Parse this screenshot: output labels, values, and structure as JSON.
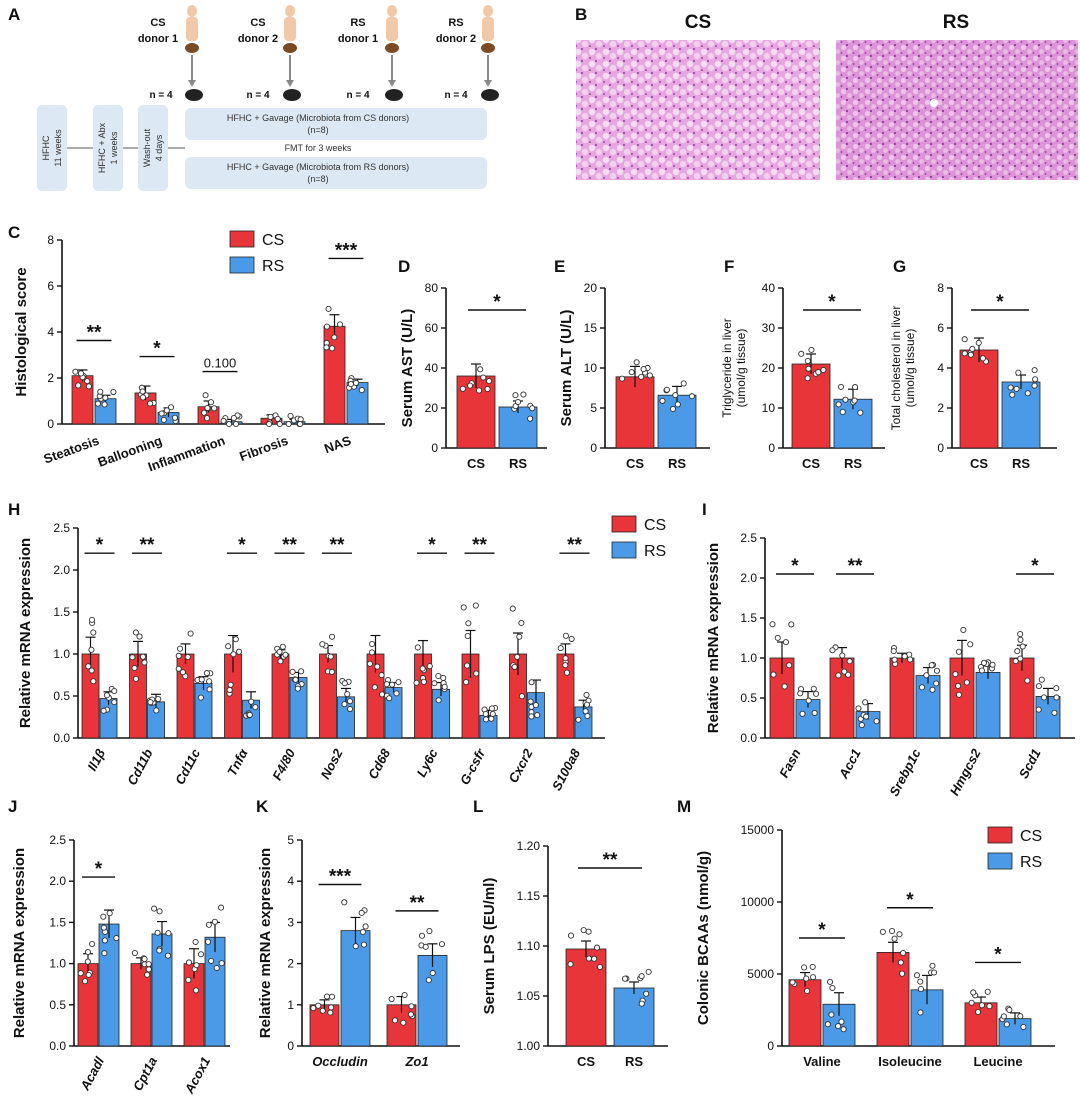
{
  "colors": {
    "cs": "#e8353a",
    "rs": "#4a9ae8",
    "box": "#dce8f3",
    "he": "#d77bd0"
  },
  "panels": {
    "A": "A",
    "B": "B",
    "C": "C",
    "D": "D",
    "E": "E",
    "F": "F",
    "G": "G",
    "H": "H",
    "I": "I",
    "J": "J",
    "K": "K",
    "L": "L",
    "M": "M"
  },
  "panel_a": {
    "donors": [
      {
        "line1": "CS",
        "line2": "donor 1",
        "n": "n = 4"
      },
      {
        "line1": "CS",
        "line2": "donor 2",
        "n": "n = 4"
      },
      {
        "line1": "RS",
        "line2": "donor 1",
        "n": "n = 4"
      },
      {
        "line1": "RS",
        "line2": "donor 2",
        "n": "n = 4"
      }
    ],
    "step1": [
      "HFHC",
      "11 weeks"
    ],
    "step2": [
      "HFHC + Abx",
      "1 weeks"
    ],
    "step3": [
      "Wash-out",
      "4 days"
    ],
    "gavage_cs": [
      "HFHC + Gavage (Microbiota from CS donors)",
      "(n=8)"
    ],
    "fmt": "FMT for 3 weeks",
    "gavage_rs": [
      "HFHC + Gavage (Microbiota from RS donors)",
      "(n=8)"
    ]
  },
  "panel_b": {
    "left": "CS",
    "right": "RS"
  },
  "chart_data": [
    {
      "id": "C",
      "type": "bar",
      "ylabel": "Histological score",
      "ylim": [
        0,
        8
      ],
      "yticks": [
        0,
        2,
        4,
        6,
        8
      ],
      "categories": [
        "Steatosis",
        "Ballooning",
        "Inflammation",
        "Fibrosis",
        "NAS"
      ],
      "legend": [
        "CS",
        "RS"
      ],
      "series": [
        {
          "name": "CS",
          "values": [
            2.1,
            1.35,
            0.75,
            0.25,
            4.25
          ],
          "errors": [
            0.25,
            0.3,
            0.25,
            0.15,
            0.5
          ]
        },
        {
          "name": "RS",
          "values": [
            1.1,
            0.5,
            0.1,
            0.1,
            1.8
          ],
          "errors": [
            0.15,
            0.2,
            0.1,
            0.1,
            0.15
          ]
        }
      ],
      "significance": [
        "**",
        "*",
        "0.100",
        "",
        "***"
      ]
    },
    {
      "id": "D",
      "type": "bar",
      "ylabel": "Serum AST (U/L)",
      "ylim": [
        0,
        80
      ],
      "yticks": [
        0,
        20,
        40,
        60,
        80
      ],
      "categories": [
        "CS",
        "RS"
      ],
      "values": [
        36,
        20.5
      ],
      "errors": [
        6,
        3
      ],
      "significance": "*"
    },
    {
      "id": "E",
      "type": "bar",
      "ylabel": "Serum ALT (U/L)",
      "ylim": [
        0,
        20
      ],
      "yticks": [
        0,
        5,
        10,
        15,
        20
      ],
      "categories": [
        "CS",
        "RS"
      ],
      "values": [
        8.9,
        6.6
      ],
      "errors": [
        1.3,
        1.1
      ],
      "significance": ""
    },
    {
      "id": "F",
      "type": "bar",
      "ylabel": [
        "Triglyceride in liver",
        "(umol/g tissue)"
      ],
      "ylim": [
        0,
        40
      ],
      "yticks": [
        0,
        10,
        20,
        30,
        40
      ],
      "categories": [
        "CS",
        "RS"
      ],
      "values": [
        21,
        12.2
      ],
      "errors": [
        2.5,
        2.5
      ],
      "significance": "*"
    },
    {
      "id": "G",
      "type": "bar",
      "ylabel": [
        "Total cholesterol in liver",
        "(umol/g tissue)"
      ],
      "ylim": [
        0,
        8
      ],
      "yticks": [
        0,
        2,
        4,
        6,
        8
      ],
      "categories": [
        "CS",
        "RS"
      ],
      "values": [
        4.9,
        3.3
      ],
      "errors": [
        0.6,
        0.35
      ],
      "significance": "*"
    },
    {
      "id": "H",
      "type": "bar",
      "ylabel": "Relative mRNA expression",
      "ylim": [
        0,
        2.5
      ],
      "yticks": [
        "0.0",
        "0.5",
        "1.0",
        "1.5",
        "2.0",
        "2.5"
      ],
      "categories": [
        "Il1β",
        "Cd11b",
        "Cd11c",
        "Tnfα",
        "F4/80",
        "Nos2",
        "Cd68",
        "Ly6c",
        "G-csfr",
        "Cxcr2",
        "S100a8"
      ],
      "legend": [
        "CS",
        "RS"
      ],
      "series": [
        {
          "name": "CS",
          "values": [
            1.0,
            1.0,
            1.0,
            1.0,
            1.0,
            1.0,
            1.0,
            1.0,
            1.0,
            1.0,
            1.0
          ],
          "errors": [
            0.2,
            0.15,
            0.12,
            0.22,
            0.05,
            0.1,
            0.22,
            0.16,
            0.28,
            0.25,
            0.12
          ]
        },
        {
          "name": "RS",
          "values": [
            0.47,
            0.43,
            0.65,
            0.45,
            0.72,
            0.49,
            0.6,
            0.58,
            0.27,
            0.54,
            0.37
          ],
          "errors": [
            0.08,
            0.09,
            0.08,
            0.1,
            0.06,
            0.1,
            0.06,
            0.08,
            0.06,
            0.15,
            0.08
          ]
        }
      ],
      "significance": [
        "*",
        "**",
        "",
        "*",
        "**",
        "**",
        "",
        "*",
        "**",
        "",
        "**"
      ]
    },
    {
      "id": "I",
      "type": "bar",
      "ylabel": "Relative mRNA expression",
      "ylim": [
        0,
        2.5
      ],
      "yticks": [
        "0.0",
        "0.5",
        "1.0",
        "1.5",
        "2.0",
        "2.5"
      ],
      "categories": [
        "Fasn",
        "Acc1",
        "Srebp1c",
        "Hmgcs2",
        "Scd1"
      ],
      "series": [
        {
          "name": "CS",
          "values": [
            1.0,
            1.0,
            1.0,
            1.0,
            1.0
          ],
          "errors": [
            0.2,
            0.13,
            0.06,
            0.22,
            0.16
          ]
        },
        {
          "name": "RS",
          "values": [
            0.48,
            0.33,
            0.78,
            0.82,
            0.52
          ],
          "errors": [
            0.1,
            0.1,
            0.1,
            0.08,
            0.1
          ]
        }
      ],
      "significance": [
        "*",
        "**",
        "",
        "",
        "*"
      ]
    },
    {
      "id": "J",
      "type": "bar",
      "ylabel": "Relative mRNA expression",
      "ylim": [
        0,
        2.5
      ],
      "yticks": [
        "0.0",
        "0.5",
        "1.0",
        "1.5",
        "2.0",
        "2.5"
      ],
      "categories": [
        "Acadl",
        "Cpt1a",
        "Acox1"
      ],
      "series": [
        {
          "name": "CS",
          "values": [
            1.0,
            1.0,
            1.0
          ],
          "errors": [
            0.12,
            0.07,
            0.18
          ]
        },
        {
          "name": "RS",
          "values": [
            1.48,
            1.36,
            1.32
          ],
          "errors": [
            0.17,
            0.15,
            0.18
          ]
        }
      ],
      "significance": [
        "*",
        "",
        ""
      ]
    },
    {
      "id": "K",
      "type": "bar",
      "ylabel": "Relative mRNA expression",
      "ylim": [
        0,
        5
      ],
      "yticks": [
        0,
        1,
        2,
        3,
        4,
        5
      ],
      "categories": [
        "Occludin",
        "Zo1"
      ],
      "series": [
        {
          "name": "CS",
          "values": [
            1.0,
            1.0
          ],
          "errors": [
            0.12,
            0.2
          ]
        },
        {
          "name": "RS",
          "values": [
            2.8,
            2.2
          ],
          "errors": [
            0.32,
            0.28
          ]
        }
      ],
      "significance": [
        "***",
        "**"
      ]
    },
    {
      "id": "L",
      "type": "bar",
      "ylabel": "Serum LPS (EU/ml)",
      "ylim": [
        1.0,
        1.2
      ],
      "yticks": [
        "1.00",
        "1.05",
        "1.10",
        "1.15",
        "1.20"
      ],
      "categories": [
        "CS",
        "RS"
      ],
      "values": [
        1.097,
        1.058
      ],
      "errors": [
        0.008,
        0.006
      ],
      "significance": "**"
    },
    {
      "id": "M",
      "type": "bar",
      "ylabel": "Colonic BCAAs (nmol/g)",
      "ylim": [
        0,
        15000
      ],
      "yticks": [
        0,
        5000,
        10000,
        15000
      ],
      "categories": [
        "Valine",
        "Isoleucine",
        "Leucine"
      ],
      "legend": [
        "CS",
        "RS"
      ],
      "series": [
        {
          "name": "CS",
          "values": [
            4600,
            6500,
            3000
          ],
          "errors": [
            500,
            700,
            400
          ]
        },
        {
          "name": "RS",
          "values": [
            2900,
            3900,
            1900
          ],
          "errors": [
            800,
            1000,
            400
          ]
        }
      ],
      "significance": [
        "*",
        "*",
        "*"
      ]
    }
  ]
}
